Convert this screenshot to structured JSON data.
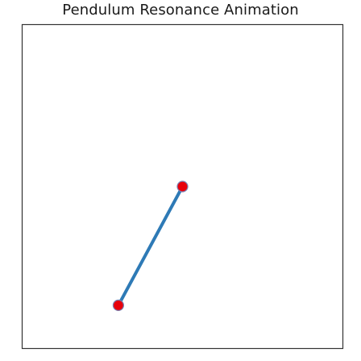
{
  "chart_data": {
    "type": "line",
    "title": "Pendulum Resonance Animation",
    "xlabel": "",
    "ylabel": "",
    "xlim": [
      -1.5,
      1.5
    ],
    "ylim": [
      -1.5,
      1.5
    ],
    "grid": false,
    "axes_visible": false,
    "series": [
      {
        "x": [
          0.0,
          -0.6
        ],
        "y": [
          0.0,
          -1.1
        ]
      }
    ],
    "colors": {
      "rod": "#2e7ab6",
      "bob": "#e8000b",
      "bob_edge": "#7a7fb0",
      "frame": "#333333"
    }
  }
}
